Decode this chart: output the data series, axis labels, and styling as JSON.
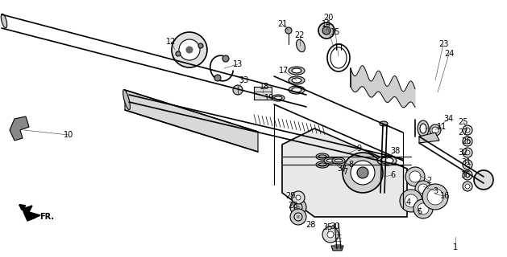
{
  "bg_color": "#ffffff",
  "line_color": "#000000",
  "fig_width": 6.29,
  "fig_height": 3.2,
  "dpi": 100,
  "font_size": 7.0
}
